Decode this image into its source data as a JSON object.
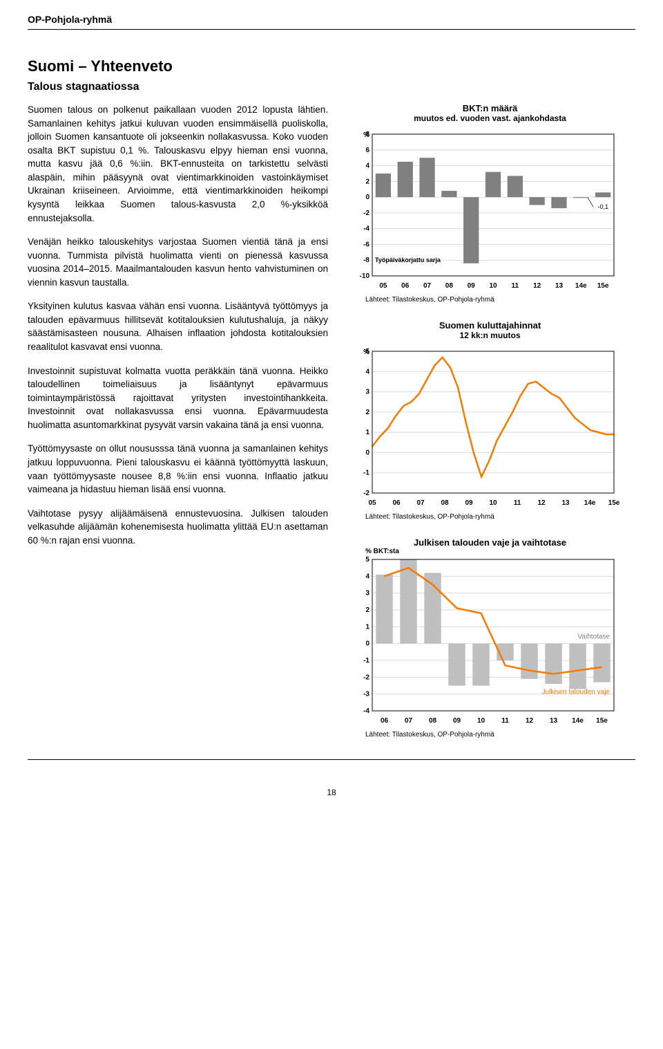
{
  "brand": "OP-Pohjola-ryhmä",
  "section_title": "Suomi – Yhteenveto",
  "subtitle": "Talous stagnaatiossa",
  "paragraphs": [
    "Suomen talous on polkenut paikallaan vuoden 2012 lopusta lähtien. Samanlainen kehitys jatkui kuluvan vuoden ensimmäisellä puoliskolla, jolloin Suomen kansantuote oli jokseenkin nollakasvussa. Koko vuoden osalta BKT supistuu 0,1 %. Talouskasvu elpyy hieman ensi vuonna, mutta kasvu jää 0,6 %:iin. BKT-ennusteita on tarkistettu selvästi alaspäin, mihin pääsyynä ovat vientimarkkinoiden vastoinkäymiset Ukrainan kriiseineen. Arvioimme, että vientimarkkinoiden heikompi kysyntä leikkaa Suomen talous-kasvusta 2,0 %-yksikköä ennustejaksolla.",
    "Venäjän heikko talouskehitys varjostaa Suomen vientiä tänä ja ensi vuonna. Tummista pilvistä huolimatta vienti on pienessä kasvussa vuosina 2014–2015. Maailmantalouden kasvun hento vahvistuminen on viennin kasvun taustalla.",
    "Yksityinen kulutus kasvaa vähän ensi vuonna. Lisääntyvä työttömyys ja talouden epävarmuus hillitsevät kotitalouksien kulutushaluja, ja näkyy säästämisasteen nousuna. Alhaisen inflaation johdosta kotitalouksien reaalitulot kasvavat ensi vuonna.",
    "Investoinnit supistuvat kolmatta vuotta peräkkäin tänä vuonna. Heikko taloudellinen toimeliaisuus ja lisääntynyt epävarmuus toimintaympäristössä rajoittavat yritysten investointihankkeita. Investoinnit ovat nollakasvussa ensi vuonna. Epävarmuudesta huolimatta asuntomarkkinat pysyvät varsin vakaina tänä ja ensi vuonna.",
    "Työttömyysaste on ollut noususssa tänä vuonna ja samanlainen kehitys jatkuu loppuvuonna. Pieni talouskasvu ei käännä työttömyyttä laskuun, vaan työttömyysaste nousee 8,8 %:iin ensi vuonna. Inflaatio jatkuu vaimeana ja hidastuu hieman lisää ensi vuonna.",
    "Vaihtotase pysyy alijäämäisenä ennustevuosina. Julkisen talouden velkasuhde alijäämän kohenemisesta huolimatta ylittää EU:n asettaman 60 %:n rajan ensi vuonna."
  ],
  "chart1": {
    "title": "BKT:n määrä",
    "subtitle": "muutos ed. vuoden vast. ajankohdasta",
    "ylabel": "%",
    "yticks": [
      8,
      6,
      4,
      2,
      0,
      -2,
      -4,
      -6,
      -8,
      -10
    ],
    "xlabels": [
      "05",
      "06",
      "07",
      "08",
      "09",
      "10",
      "11",
      "12",
      "13",
      "14e",
      "15e"
    ],
    "bars": [
      3.0,
      4.5,
      5.0,
      0.8,
      -8.4,
      3.2,
      2.7,
      -1.0,
      -1.4,
      -0.1,
      0.6
    ],
    "bar_color": "#808080",
    "annotation": "-0,1",
    "annotation_color": "#000000",
    "series_label": "Työpäiväkorjattu sarja",
    "source": "Lähteet: Tilastokeskus, OP-Pohjola-ryhmä",
    "bg": "#ffffff",
    "grid_color": "#d9d9d9",
    "label_fontsize": 10
  },
  "chart2": {
    "title": "Suomen kuluttajahinnat",
    "subtitle": "12 kk:n muutos",
    "ylabel": "%",
    "yticks": [
      5,
      4,
      3,
      2,
      1,
      0,
      -1,
      -2
    ],
    "xlabels": [
      "05",
      "06",
      "07",
      "08",
      "09",
      "10",
      "11",
      "12",
      "13",
      "14e",
      "15e"
    ],
    "line": [
      0.3,
      0.8,
      1.2,
      1.8,
      2.3,
      2.5,
      2.9,
      3.6,
      4.3,
      4.7,
      4.2,
      3.2,
      1.5,
      0.0,
      -1.2,
      -0.4,
      0.6,
      1.3,
      2.0,
      2.8,
      3.4,
      3.5,
      3.2,
      2.9,
      2.7,
      2.2,
      1.7,
      1.4,
      1.1,
      1.0,
      0.9,
      0.9
    ],
    "line_color": "#f47a00",
    "line_width": 2.5,
    "source": "Lähteet: Tilastokeskus, OP-Pohjola-ryhmä",
    "bg": "#ffffff",
    "grid_color": "#d9d9d9"
  },
  "chart3": {
    "title": "Julkisen talouden vaje ja vaihtotase",
    "ylabel": "% BKT:sta",
    "yticks": [
      5,
      4,
      3,
      2,
      1,
      0,
      -1,
      -2,
      -3,
      -4
    ],
    "xlabels": [
      "06",
      "07",
      "08",
      "09",
      "10",
      "11",
      "12",
      "13",
      "14e",
      "15e"
    ],
    "bars": [
      4.1,
      5.0,
      4.2,
      -2.5,
      -2.5,
      -1.0,
      -2.1,
      -2.4,
      -2.7,
      -2.3
    ],
    "bar_color": "#bfbfbf",
    "line": [
      4.0,
      4.5,
      3.5,
      2.1,
      1.8,
      -1.3,
      -1.6,
      -1.8,
      -1.6,
      -1.4
    ],
    "line_color": "#f47a00",
    "line_width": 2.5,
    "label_right_top": "Vaihtotase",
    "label_right_bottom": "Julkisen talouden vaje",
    "label_color_bottom": "#f47a00",
    "label_color_top": "#808080",
    "source": "Lähteet: Tilastokeskus, OP-Pohjola-ryhmä",
    "bg": "#ffffff",
    "grid_color": "#d9d9d9"
  },
  "page_number": "18"
}
